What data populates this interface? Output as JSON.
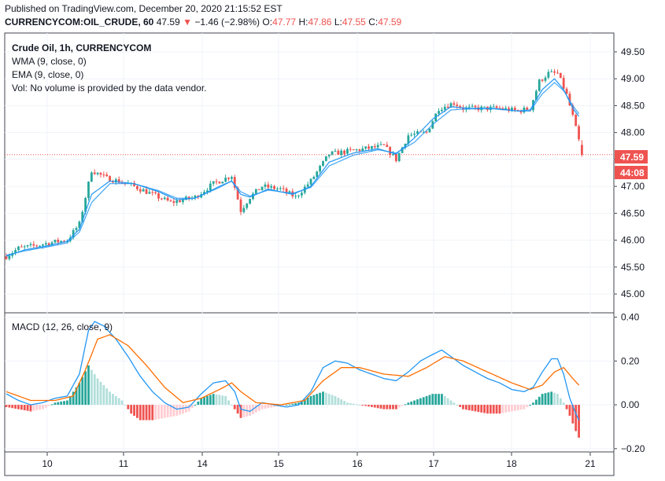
{
  "header": {
    "published": "Published on TradingView.com, December 20, 2020 21:15:52 EST",
    "symbol": "CURRENCYCOM:OIL_CRUDE, 60",
    "last": "47.59",
    "change_arrow": "▼",
    "change": "−1.46 (−2.98%)",
    "o_label": "O:",
    "o": "47.77",
    "h_label": "H:",
    "h": "47.86",
    "l_label": "L:",
    "l": "47.55",
    "c_label": "C:",
    "c": "47.59"
  },
  "legend": {
    "title": "Crude Oil, 1h, CURRENCYCOM",
    "wma": "WMA (9, close, 0)",
    "ema": "EMA (9, close, 0)",
    "vol": "Vol: No volume is provided by the data vendor.",
    "macd": "MACD (12, 26, close, 9)"
  },
  "price_badge": "47.59",
  "countdown_badge": "44:08",
  "colors": {
    "up": "#26a69a",
    "down": "#ef5350",
    "ma": "#2196f3",
    "signal": "#ff6d00",
    "hist_up": "#26a69a",
    "hist_up_fade": "#b2dfdb",
    "hist_down": "#ef5350",
    "hist_down_fade": "#ffcdd2"
  },
  "chart_data": [
    {
      "type": "candlestick",
      "title": "Crude Oil, 1h, CURRENCYCOM",
      "ylim": [
        44.65,
        49.85
      ],
      "y_ticks": [
        "45.00",
        "45.50",
        "46.00",
        "46.50",
        "47.00",
        "47.50",
        "48.00",
        "48.50",
        "49.00",
        "49.50"
      ],
      "x_ticks": [
        "10",
        "11",
        "14",
        "15",
        "16",
        "17",
        "18",
        "21"
      ],
      "anchors": [
        [
          0,
          45.7
        ],
        [
          4,
          45.85
        ],
        [
          10,
          45.9
        ],
        [
          14,
          45.95
        ],
        [
          20,
          46.0
        ],
        [
          24,
          46.3
        ],
        [
          28,
          47.3
        ],
        [
          33,
          47.15
        ],
        [
          40,
          47.05
        ],
        [
          48,
          46.85
        ],
        [
          54,
          46.7
        ],
        [
          62,
          46.8
        ],
        [
          68,
          47.05
        ],
        [
          74,
          47.2
        ],
        [
          77,
          46.55
        ],
        [
          80,
          46.8
        ],
        [
          84,
          47.0
        ],
        [
          90,
          46.95
        ],
        [
          95,
          46.8
        ],
        [
          100,
          47.1
        ],
        [
          106,
          47.6
        ],
        [
          112,
          47.65
        ],
        [
          118,
          47.7
        ],
        [
          124,
          47.75
        ],
        [
          128,
          47.5
        ],
        [
          132,
          47.95
        ],
        [
          138,
          48.0
        ],
        [
          142,
          48.45
        ],
        [
          147,
          48.55
        ],
        [
          150,
          48.45
        ],
        [
          156,
          48.45
        ],
        [
          162,
          48.45
        ],
        [
          168,
          48.4
        ],
        [
          172,
          48.45
        ],
        [
          175,
          48.95
        ],
        [
          178,
          49.1
        ],
        [
          181,
          49.1
        ],
        [
          184,
          48.7
        ],
        [
          186,
          48.3
        ],
        [
          188,
          47.85
        ],
        [
          189,
          47.59
        ]
      ],
      "wma": [
        [
          0,
          45.7
        ],
        [
          6,
          45.82
        ],
        [
          14,
          45.9
        ],
        [
          20,
          45.98
        ],
        [
          24,
          46.2
        ],
        [
          28,
          46.85
        ],
        [
          34,
          47.1
        ],
        [
          42,
          47.05
        ],
        [
          50,
          46.9
        ],
        [
          56,
          46.75
        ],
        [
          62,
          46.78
        ],
        [
          70,
          47.0
        ],
        [
          74,
          47.1
        ],
        [
          77,
          46.85
        ],
        [
          80,
          46.8
        ],
        [
          86,
          46.95
        ],
        [
          94,
          46.85
        ],
        [
          100,
          47.0
        ],
        [
          106,
          47.45
        ],
        [
          114,
          47.62
        ],
        [
          122,
          47.7
        ],
        [
          128,
          47.6
        ],
        [
          134,
          47.9
        ],
        [
          140,
          48.25
        ],
        [
          146,
          48.48
        ],
        [
          152,
          48.45
        ],
        [
          160,
          48.45
        ],
        [
          168,
          48.4
        ],
        [
          172,
          48.42
        ],
        [
          176,
          48.8
        ],
        [
          180,
          49.0
        ],
        [
          183,
          48.8
        ],
        [
          186,
          48.45
        ],
        [
          188,
          48.3
        ]
      ],
      "ema": [
        [
          0,
          45.72
        ],
        [
          6,
          45.8
        ],
        [
          14,
          45.88
        ],
        [
          20,
          45.95
        ],
        [
          24,
          46.15
        ],
        [
          28,
          46.7
        ],
        [
          34,
          47.05
        ],
        [
          42,
          47.05
        ],
        [
          50,
          46.92
        ],
        [
          56,
          46.78
        ],
        [
          62,
          46.78
        ],
        [
          70,
          46.98
        ],
        [
          74,
          47.1
        ],
        [
          77,
          46.9
        ],
        [
          80,
          46.82
        ],
        [
          86,
          46.93
        ],
        [
          94,
          46.87
        ],
        [
          100,
          46.98
        ],
        [
          106,
          47.38
        ],
        [
          114,
          47.58
        ],
        [
          122,
          47.68
        ],
        [
          128,
          47.62
        ],
        [
          134,
          47.82
        ],
        [
          140,
          48.15
        ],
        [
          146,
          48.42
        ],
        [
          152,
          48.44
        ],
        [
          160,
          48.44
        ],
        [
          168,
          48.4
        ],
        [
          172,
          48.4
        ],
        [
          176,
          48.72
        ],
        [
          180,
          48.93
        ],
        [
          183,
          48.78
        ],
        [
          186,
          48.5
        ],
        [
          188,
          48.35
        ]
      ]
    },
    {
      "type": "macd",
      "title": "MACD (12, 26, close, 9)",
      "ylim": [
        -0.215,
        0.42
      ],
      "y_ticks": [
        "0.40",
        "0.20",
        "0.00",
        "−0.20"
      ],
      "macd_line": [
        [
          0,
          0.05
        ],
        [
          4,
          0.02
        ],
        [
          8,
          0.0
        ],
        [
          12,
          0.01
        ],
        [
          16,
          0.03
        ],
        [
          20,
          0.04
        ],
        [
          24,
          0.14
        ],
        [
          27,
          0.34
        ],
        [
          29,
          0.38
        ],
        [
          32,
          0.36
        ],
        [
          36,
          0.3
        ],
        [
          40,
          0.22
        ],
        [
          44,
          0.13
        ],
        [
          48,
          0.06
        ],
        [
          52,
          0.01
        ],
        [
          56,
          -0.02
        ],
        [
          60,
          -0.01
        ],
        [
          64,
          0.05
        ],
        [
          68,
          0.1
        ],
        [
          72,
          0.11
        ],
        [
          75,
          0.06
        ],
        [
          77,
          -0.02
        ],
        [
          80,
          -0.03
        ],
        [
          84,
          0.01
        ],
        [
          88,
          0.0
        ],
        [
          92,
          -0.01
        ],
        [
          96,
          0.0
        ],
        [
          100,
          0.06
        ],
        [
          104,
          0.17
        ],
        [
          108,
          0.2
        ],
        [
          112,
          0.19
        ],
        [
          116,
          0.16
        ],
        [
          120,
          0.14
        ],
        [
          124,
          0.12
        ],
        [
          128,
          0.11
        ],
        [
          132,
          0.15
        ],
        [
          136,
          0.2
        ],
        [
          140,
          0.23
        ],
        [
          143,
          0.25
        ],
        [
          146,
          0.22
        ],
        [
          150,
          0.18
        ],
        [
          154,
          0.15
        ],
        [
          158,
          0.12
        ],
        [
          162,
          0.1
        ],
        [
          166,
          0.07
        ],
        [
          170,
          0.06
        ],
        [
          173,
          0.08
        ],
        [
          176,
          0.15
        ],
        [
          179,
          0.21
        ],
        [
          181,
          0.21
        ],
        [
          183,
          0.14
        ],
        [
          185,
          0.03
        ],
        [
          187,
          -0.04
        ],
        [
          188,
          -0.07
        ]
      ],
      "signal_line": [
        [
          0,
          0.06
        ],
        [
          8,
          0.02
        ],
        [
          16,
          0.02
        ],
        [
          22,
          0.04
        ],
        [
          26,
          0.16
        ],
        [
          30,
          0.3
        ],
        [
          34,
          0.32
        ],
        [
          40,
          0.27
        ],
        [
          46,
          0.18
        ],
        [
          52,
          0.08
        ],
        [
          58,
          0.01
        ],
        [
          64,
          0.03
        ],
        [
          70,
          0.07
        ],
        [
          74,
          0.1
        ],
        [
          77,
          0.06
        ],
        [
          82,
          0.01
        ],
        [
          90,
          0.0
        ],
        [
          98,
          0.02
        ],
        [
          104,
          0.11
        ],
        [
          110,
          0.17
        ],
        [
          116,
          0.17
        ],
        [
          124,
          0.14
        ],
        [
          132,
          0.13
        ],
        [
          138,
          0.17
        ],
        [
          144,
          0.22
        ],
        [
          150,
          0.2
        ],
        [
          158,
          0.15
        ],
        [
          166,
          0.1
        ],
        [
          172,
          0.07
        ],
        [
          176,
          0.09
        ],
        [
          180,
          0.15
        ],
        [
          183,
          0.17
        ],
        [
          186,
          0.12
        ],
        [
          188,
          0.09
        ]
      ],
      "histogram": [
        [
          0,
          -0.01
        ],
        [
          4,
          -0.02
        ],
        [
          8,
          -0.03
        ],
        [
          12,
          -0.02
        ],
        [
          16,
          0.01
        ],
        [
          20,
          0.02
        ],
        [
          24,
          0.1
        ],
        [
          27,
          0.18
        ],
        [
          30,
          0.12
        ],
        [
          34,
          0.06
        ],
        [
          38,
          0.02
        ],
        [
          41,
          -0.04
        ],
        [
          44,
          -0.07
        ],
        [
          48,
          -0.07
        ],
        [
          52,
          -0.06
        ],
        [
          56,
          -0.05
        ],
        [
          60,
          -0.03
        ],
        [
          64,
          0.03
        ],
        [
          68,
          0.05
        ],
        [
          72,
          0.04
        ],
        [
          75,
          -0.02
        ],
        [
          77,
          -0.06
        ],
        [
          80,
          -0.05
        ],
        [
          84,
          -0.02
        ],
        [
          88,
          -0.01
        ],
        [
          92,
          0.0
        ],
        [
          96,
          0.01
        ],
        [
          100,
          0.04
        ],
        [
          104,
          0.06
        ],
        [
          108,
          0.04
        ],
        [
          112,
          0.01
        ],
        [
          116,
          0.0
        ],
        [
          120,
          -0.01
        ],
        [
          124,
          -0.02
        ],
        [
          128,
          -0.02
        ],
        [
          132,
          0.01
        ],
        [
          136,
          0.03
        ],
        [
          140,
          0.05
        ],
        [
          143,
          0.05
        ],
        [
          146,
          0.02
        ],
        [
          150,
          -0.02
        ],
        [
          154,
          -0.03
        ],
        [
          158,
          -0.04
        ],
        [
          162,
          -0.04
        ],
        [
          166,
          -0.03
        ],
        [
          170,
          -0.02
        ],
        [
          173,
          0.01
        ],
        [
          176,
          0.05
        ],
        [
          179,
          0.06
        ],
        [
          181,
          0.05
        ],
        [
          183,
          0.01
        ],
        [
          185,
          -0.05
        ],
        [
          187,
          -0.12
        ],
        [
          188,
          -0.15
        ]
      ]
    }
  ]
}
